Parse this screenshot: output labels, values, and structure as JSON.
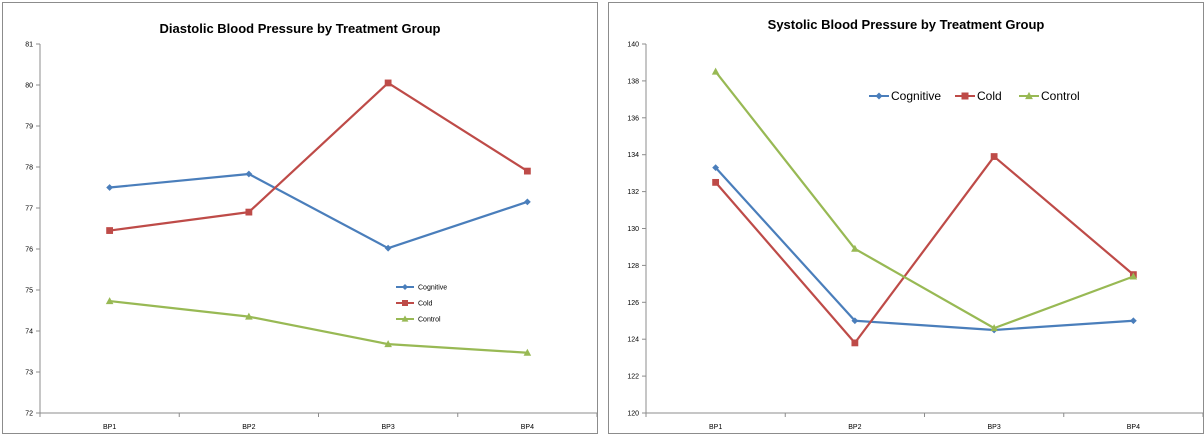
{
  "chart_data": [
    {
      "type": "line",
      "title": "Diastolic Blood Pressure by Treatment Group",
      "categories": [
        "BP1",
        "BP2",
        "BP3",
        "BP4"
      ],
      "ylim": [
        72,
        81
      ],
      "yticks": [
        "72",
        "73",
        "74",
        "75",
        "76",
        "77",
        "78",
        "79",
        "80",
        "81"
      ],
      "grid": false,
      "legend_position": "right",
      "series": [
        {
          "name": "Cognitive",
          "color": "#4a7ebb",
          "marker": "diamond",
          "values": [
            77.5,
            77.83,
            76.02,
            77.15
          ]
        },
        {
          "name": "Cold",
          "color": "#be4b48",
          "marker": "square",
          "values": [
            76.45,
            76.9,
            80.05,
            77.9
          ]
        },
        {
          "name": "Control",
          "color": "#98b954",
          "marker": "triangle",
          "values": [
            74.73,
            74.35,
            73.68,
            73.47
          ]
        }
      ]
    },
    {
      "type": "line",
      "title": "Systolic Blood Pressure by Treatment Group",
      "categories": [
        "BP1",
        "BP2",
        "BP3",
        "BP4"
      ],
      "ylim": [
        120,
        140
      ],
      "yticks": [
        "120",
        "122",
        "124",
        "126",
        "128",
        "130",
        "132",
        "134",
        "136",
        "138",
        "140"
      ],
      "grid": false,
      "legend_position": "top",
      "series": [
        {
          "name": "Cognitive",
          "color": "#4a7ebb",
          "marker": "diamond",
          "values": [
            133.3,
            125.0,
            124.5,
            125.0
          ]
        },
        {
          "name": "Cold",
          "color": "#be4b48",
          "marker": "square",
          "values": [
            132.5,
            123.8,
            133.9,
            127.5
          ]
        },
        {
          "name": "Control",
          "color": "#98b954",
          "marker": "triangle",
          "values": [
            138.5,
            128.9,
            124.6,
            127.4
          ]
        }
      ]
    }
  ]
}
